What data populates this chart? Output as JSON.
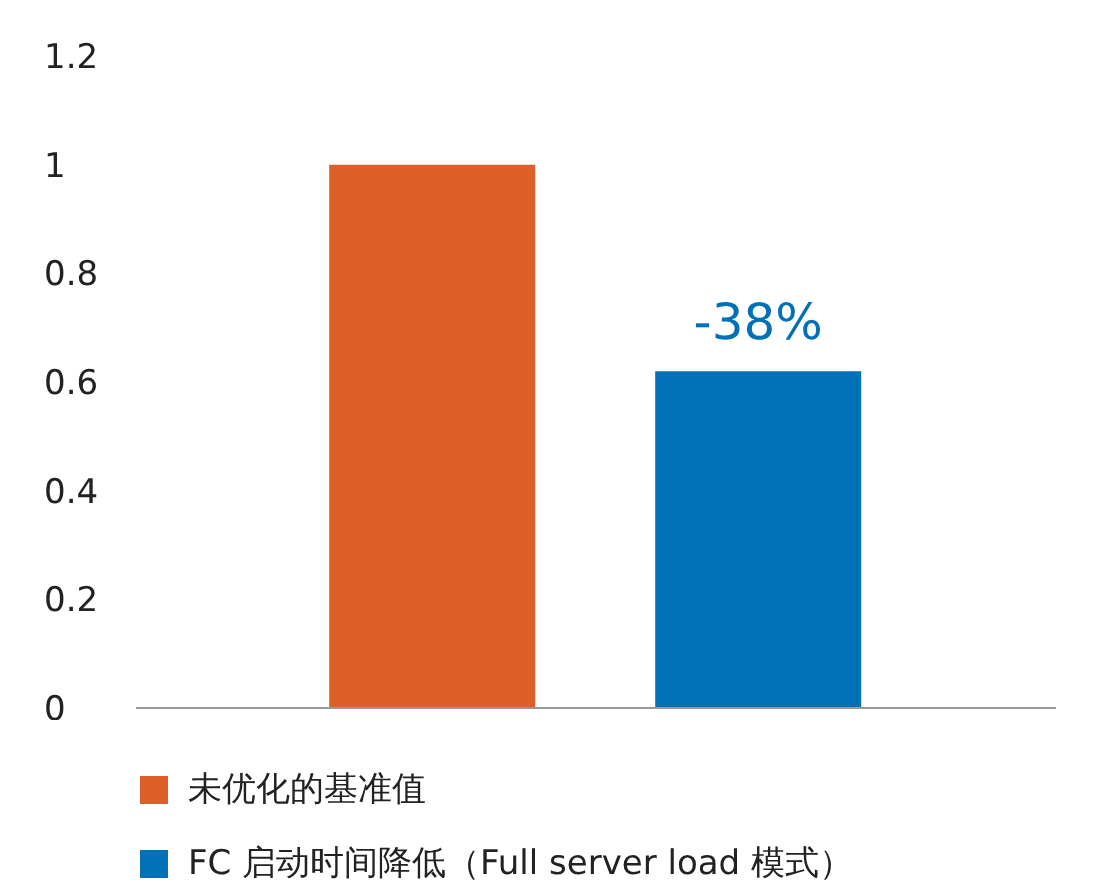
{
  "chart_data": {
    "type": "bar",
    "categories": [
      null
    ],
    "series": [
      {
        "name": "未优化的基准值",
        "color": "#dd602b",
        "values": [
          1
        ]
      },
      {
        "name": "FC 启动时间降低（Full server load 模式）",
        "color": "#0071b6",
        "values": [
          0.62
        ]
      }
    ],
    "ylim": [
      0,
      1.2
    ],
    "yticks": [
      0,
      0.2,
      0.4,
      0.6,
      0.8,
      1,
      1.2
    ],
    "legend": "bottom",
    "annotations": [
      "-38%"
    ]
  }
}
